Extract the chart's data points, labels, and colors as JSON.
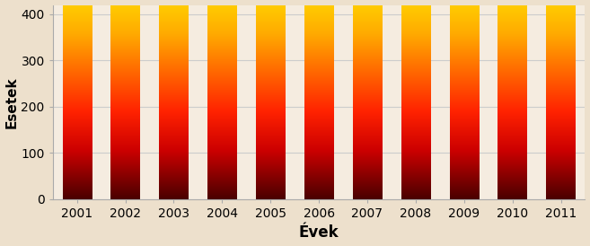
{
  "years": [
    2001,
    2002,
    2003,
    2004,
    2005,
    2006,
    2007,
    2008,
    2009,
    2010,
    2011
  ],
  "values": [
    420,
    420,
    420,
    420,
    420,
    420,
    420,
    420,
    420,
    420,
    420
  ],
  "xlabel": "Évek",
  "ylabel": "Esetek",
  "ylim": [
    0,
    420
  ],
  "yticks": [
    0,
    100,
    200,
    300,
    400
  ],
  "background_color": "#f5ece0",
  "bar_gradient_colors": [
    "#4a0000",
    "#cc0000",
    "#ff2200",
    "#ff6600",
    "#ffaa00",
    "#ffcc00"
  ],
  "bar_gradient_positions": [
    0.0,
    0.25,
    0.45,
    0.65,
    0.85,
    1.0
  ],
  "bar_width": 0.6,
  "xlabel_fontsize": 12,
  "ylabel_fontsize": 11,
  "tick_fontsize": 10,
  "grid_color": "#cccccc",
  "figure_bg": "#ede0cc"
}
